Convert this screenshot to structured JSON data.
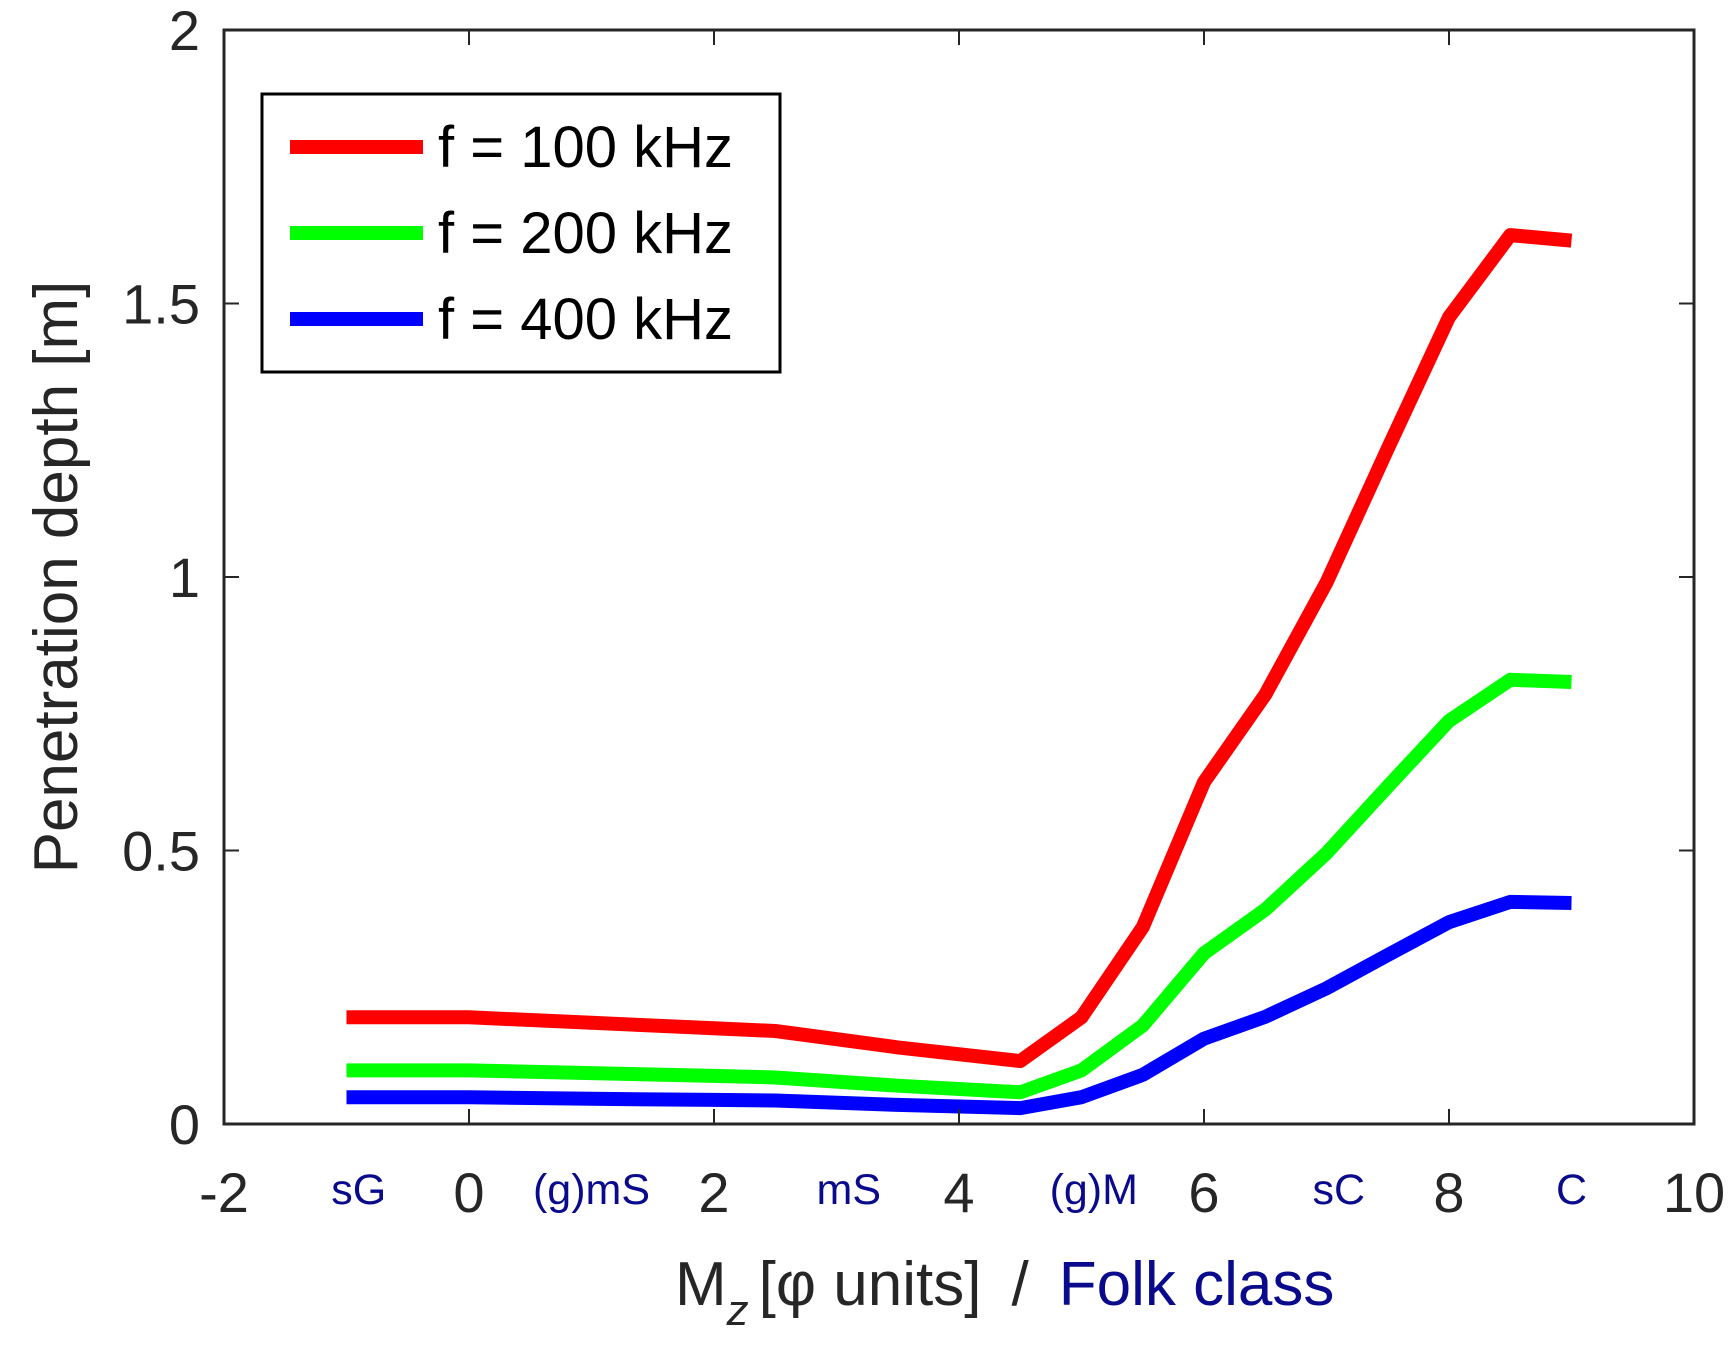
{
  "chart_data": {
    "type": "line",
    "title": "",
    "xlabel": "[φ units]",
    "xlabel_symbol": "M",
    "xlabel_subscript": "z",
    "xlabel_separator": "/",
    "xlabel_secondary": "Folk class",
    "ylabel": "Penetration depth [m]",
    "xlim": [
      -2,
      10
    ],
    "ylim": [
      0,
      2
    ],
    "x_ticks": [
      -2,
      0,
      2,
      4,
      6,
      8,
      10
    ],
    "x_tick_labels": [
      "-2",
      "0",
      "2",
      "4",
      "6",
      "8",
      "10"
    ],
    "y_ticks": [
      0,
      0.5,
      1,
      1.5,
      2
    ],
    "y_tick_labels": [
      "0",
      "0.5",
      "1",
      "1.5",
      "2"
    ],
    "folk_classes": [
      {
        "label": "sG",
        "x": -0.9
      },
      {
        "label": "(g)mS",
        "x": 1.0
      },
      {
        "label": "mS",
        "x": 3.1
      },
      {
        "label": "(g)M",
        "x": 5.1
      },
      {
        "label": "sC",
        "x": 7.1
      },
      {
        "label": "C",
        "x": 9.0
      }
    ],
    "grid": false,
    "legend_position": "top-left",
    "x": [
      -1,
      0,
      1,
      2,
      2.5,
      3.5,
      4.5,
      5,
      5.5,
      6,
      6.5,
      7,
      7.5,
      8,
      8.5,
      9
    ],
    "series": [
      {
        "name": "f = 100 kHz",
        "color": "#ff0000",
        "values": [
          0.195,
          0.195,
          0.185,
          0.175,
          0.17,
          0.14,
          0.115,
          0.195,
          0.36,
          0.625,
          0.785,
          0.99,
          1.235,
          1.475,
          1.625,
          1.615
        ]
      },
      {
        "name": "f = 200 kHz",
        "color": "#00ff00",
        "values": [
          0.098,
          0.098,
          0.093,
          0.088,
          0.085,
          0.07,
          0.058,
          0.098,
          0.18,
          0.312,
          0.392,
          0.495,
          0.617,
          0.737,
          0.812,
          0.808
        ]
      },
      {
        "name": "f = 400 kHz",
        "color": "#0000ff",
        "values": [
          0.049,
          0.049,
          0.046,
          0.044,
          0.043,
          0.035,
          0.029,
          0.049,
          0.09,
          0.156,
          0.196,
          0.248,
          0.309,
          0.369,
          0.406,
          0.404
        ]
      }
    ]
  }
}
